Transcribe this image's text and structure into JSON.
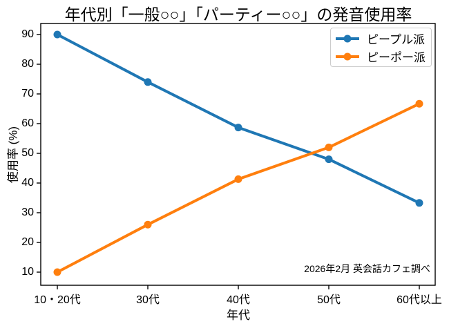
{
  "chart_data": {
    "type": "line",
    "title": "年代別「一般○○」「パーティー○○」の発音使用率",
    "xlabel": "年代",
    "ylabel": "使用率 (%)",
    "categories": [
      "10・20代",
      "30代",
      "40代",
      "50代",
      "60代以上"
    ],
    "series": [
      {
        "name": "ピープル派",
        "color": "#1f77b4",
        "values": [
          90,
          74,
          58.7,
          48,
          33.3
        ]
      },
      {
        "name": "ピーポー派",
        "color": "#ff7f0e",
        "values": [
          10,
          26,
          41.3,
          52,
          66.7
        ]
      }
    ],
    "yticks": [
      10,
      20,
      30,
      40,
      50,
      60,
      70,
      80,
      90
    ],
    "ylim": [
      6,
      94
    ],
    "grid": false,
    "legend_position": "upper right",
    "annotation": "2026年2月 英会話カフェ調べ"
  }
}
